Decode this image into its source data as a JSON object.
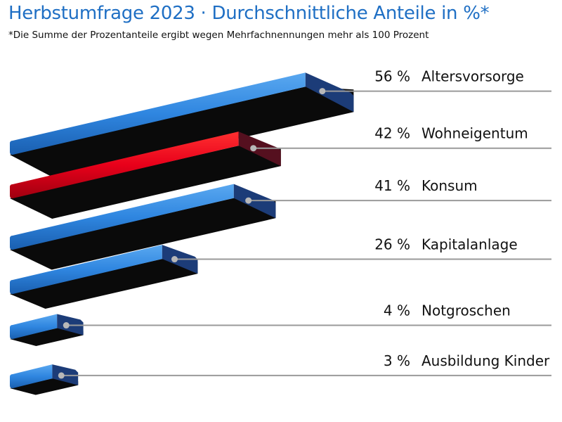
{
  "chart_data": {
    "type": "bar",
    "orientation": "horizontal",
    "title": "Herbstumfrage 2023 · Durchschnittliche Anteile in %*",
    "subtitle": "*Die Summe der Prozentanteile ergibt wegen Mehrfachnennungen mehr als 100 Prozent",
    "unit": "%",
    "categories": [
      "Altersvorsorge",
      "Wohneigentum",
      "Konsum",
      "Kapitalanlage",
      "Notgroschen",
      "Ausbildung Kinder"
    ],
    "values": [
      56,
      42,
      41,
      26,
      4,
      3
    ],
    "value_labels": [
      "56 %",
      "42 %",
      "41 %",
      "26 %",
      "4 %",
      "3 %"
    ],
    "highlight_category": "Wohneigentum",
    "colors": {
      "bar": "#2f86e0",
      "bar_end": "#1c3c78",
      "highlight": "#e8001a",
      "highlight_end": "#55101f",
      "underside": "#0a0a0a",
      "leader_line": "#9a9a9a",
      "title": "#1f6fc4"
    },
    "grid": false,
    "legend": "none"
  }
}
